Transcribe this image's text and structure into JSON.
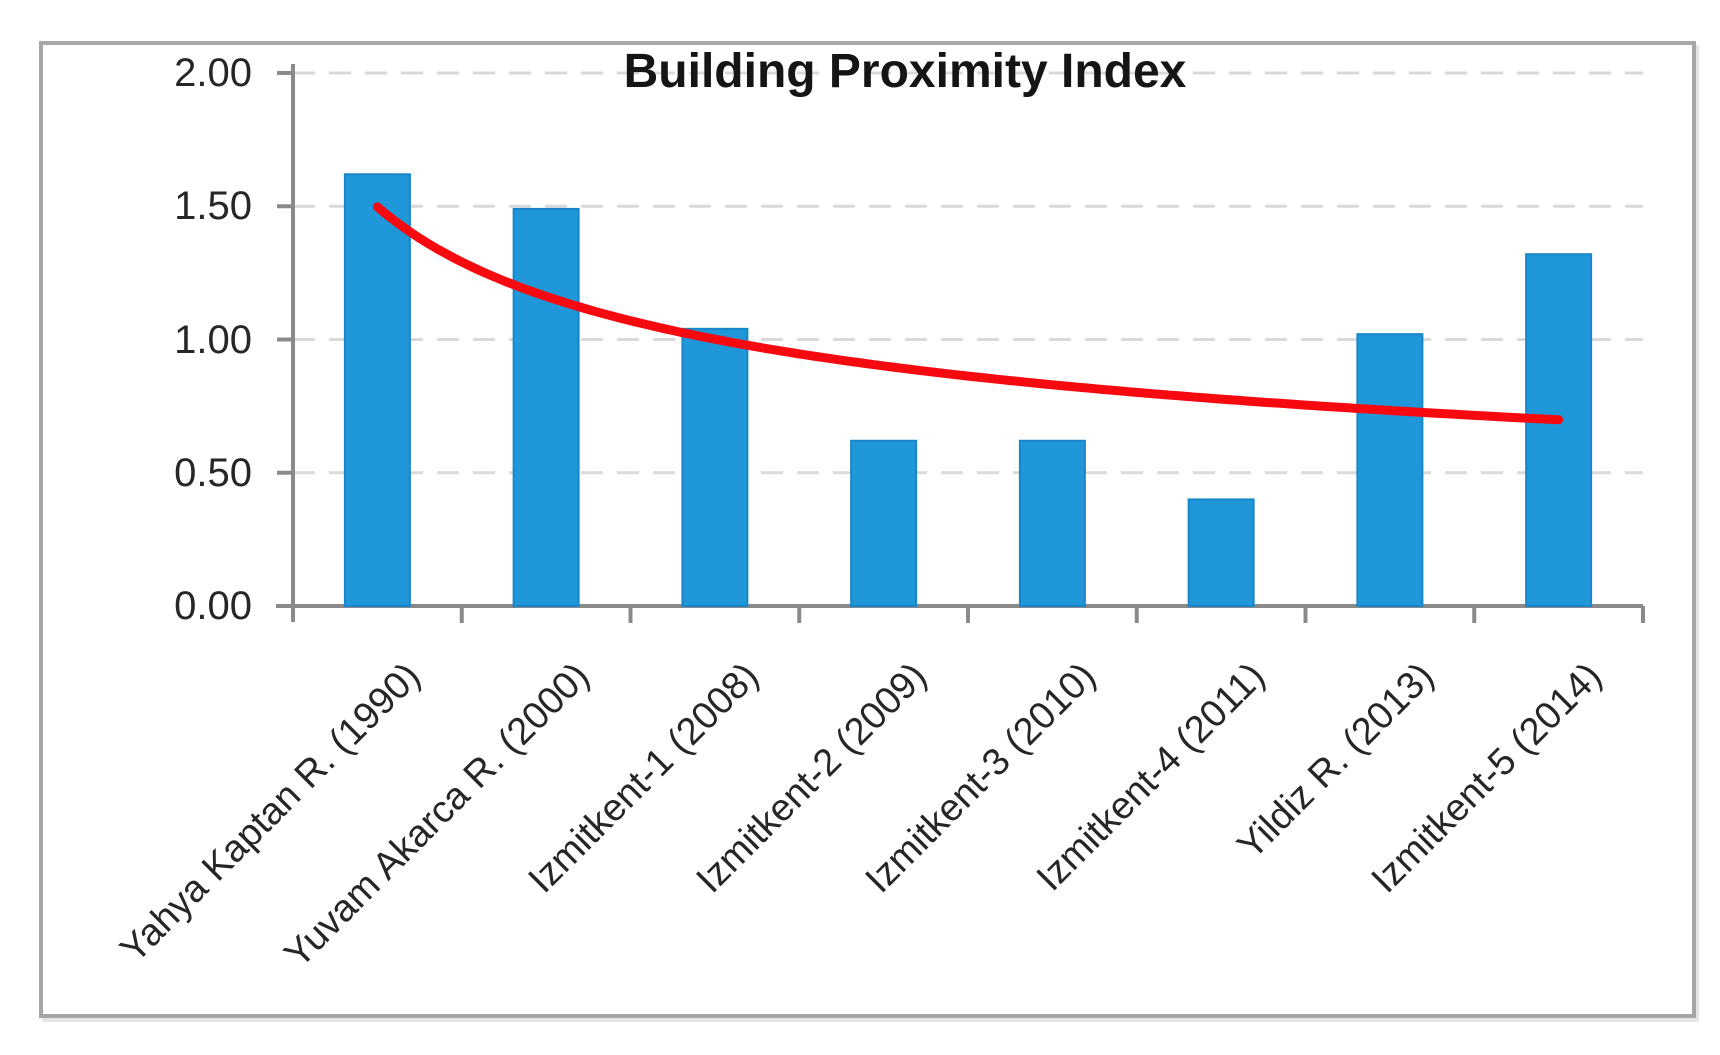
{
  "chart_data": {
    "type": "bar",
    "title": "Building Proximity Index",
    "categories": [
      "Yahya Kaptan R. (1990)",
      "Yuvam Akarca R. (2000)",
      "Izmitkent-1 (2008)",
      "Izmitkent-2 (2009)",
      "Izmitkent-3 (2010)",
      "Izmitkent-4 (2011)",
      "Yildiz R. (2013)",
      "Izmitkent-5 (2014)"
    ],
    "values": [
      1.62,
      1.49,
      1.04,
      0.62,
      0.62,
      0.4,
      1.02,
      1.32
    ],
    "xlabel": "",
    "ylabel": "",
    "ylim": [
      0,
      2.0
    ],
    "ytick_step": 0.5,
    "ytick_labels": [
      "0.00",
      "0.50",
      "1.00",
      "1.50",
      "2.00"
    ],
    "grid": "horizontal-dashed",
    "legend": "none",
    "trendline": {
      "model": "power",
      "a": 1.498,
      "b": -0.3668,
      "x_start": 1,
      "x_end": 8,
      "y_start": 1.5,
      "y_end": 0.7
    }
  },
  "style": {
    "bar_fill": "#2097d8",
    "bar_stroke": "#1886c9",
    "trend_color": "#f60a10",
    "axis_color": "#8a8a8a",
    "grid_color": "#d9d9d9",
    "tick_text_color": "#262626",
    "title_color": "#151515",
    "frame_border": "#a6a6a6",
    "background": "#ffffff"
  }
}
